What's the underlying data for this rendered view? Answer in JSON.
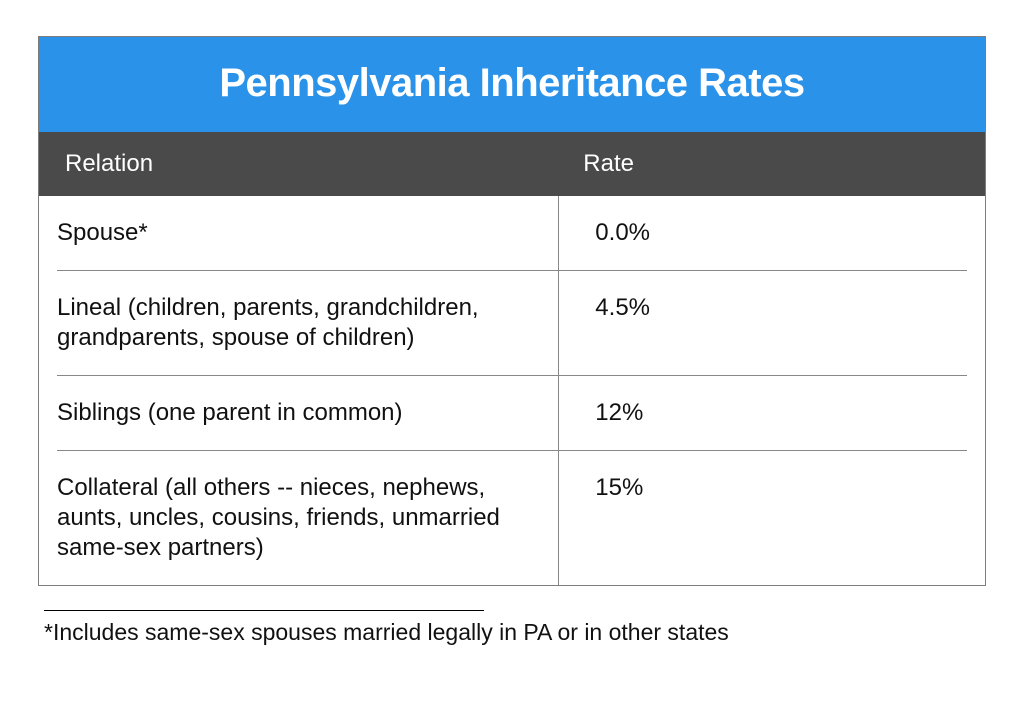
{
  "title": "Pennsylvania Inheritance Rates",
  "colors": {
    "title_bg": "#2a92e8",
    "title_fg": "#ffffff",
    "header_bg": "#4a4a4a",
    "header_fg": "#ffffff",
    "border": "#7d7d7d",
    "row_divider": "#888888",
    "text": "#111111",
    "background": "#ffffff"
  },
  "typography": {
    "title_fontsize_pt": 30,
    "title_weight": 700,
    "header_fontsize_pt": 18,
    "header_weight": 300,
    "body_fontsize_pt": 18,
    "footnote_fontsize_pt": 17,
    "font_family": "Helvetica Neue"
  },
  "table": {
    "type": "table",
    "columns": [
      {
        "key": "relation",
        "label": "Relation",
        "width_pct": 55,
        "align": "left"
      },
      {
        "key": "rate",
        "label": "Rate",
        "width_pct": 45,
        "align": "left"
      }
    ],
    "rows": [
      {
        "relation": "Spouse*",
        "rate": "0.0%"
      },
      {
        "relation": "Lineal (children, parents, grandchildren, grandparents, spouse of children)",
        "rate": "4.5%"
      },
      {
        "relation": "Siblings (one parent in common)",
        "rate": "12%"
      },
      {
        "relation": "Collateral (all others -- nieces, nephews, aunts, uncles, cousins, friends, unmarried same-sex partners)",
        "rate": "15%"
      }
    ]
  },
  "footnote": "*Includes same-sex spouses married legally in PA or in other states"
}
